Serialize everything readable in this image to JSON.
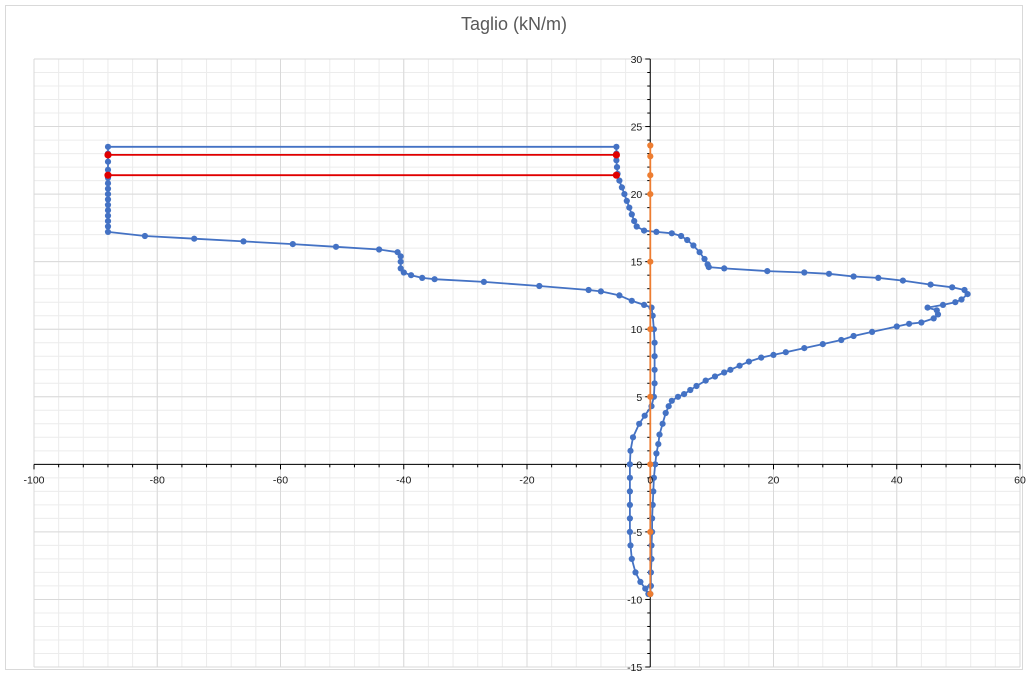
{
  "chart_data": {
    "type": "scatter",
    "title": "Taglio (kN/m)",
    "xlim": [
      -100,
      60
    ],
    "ylim": [
      -15,
      30
    ],
    "x_ticks": [
      -100,
      -80,
      -60,
      -40,
      -20,
      0,
      20,
      40,
      60
    ],
    "y_ticks": [
      -15,
      -10,
      -5,
      0,
      5,
      10,
      15,
      20,
      25,
      30
    ],
    "x_tick_labels": [
      "-100",
      "-80",
      "-60",
      "-40",
      "-20",
      "0",
      "20",
      "40",
      "60"
    ],
    "y_tick_labels": [
      "-15",
      "-10",
      "-5",
      "0",
      "5",
      "10",
      "15",
      "20",
      "25",
      "30"
    ],
    "grid": true,
    "minor_grid": true,
    "legend": "none",
    "colors": {
      "blue": "#4472c4",
      "red": "#e00000",
      "orange": "#ed7d31",
      "grid_major": "#d9d9d9",
      "grid_minor": "#ececec"
    },
    "series": [
      {
        "color": "#4472c4",
        "points": [
          [
            -0.3,
            -9.6
          ],
          [
            -0.8,
            -9.2
          ],
          [
            -1.6,
            -8.7
          ],
          [
            -2.4,
            -8.0
          ],
          [
            -3.0,
            -7.0
          ],
          [
            -3.2,
            -6.0
          ],
          [
            -3.3,
            -5.0
          ],
          [
            -3.3,
            -4.0
          ],
          [
            -3.3,
            -3.0
          ],
          [
            -3.3,
            -2.0
          ],
          [
            -3.3,
            -1.0
          ],
          [
            -3.3,
            0.0
          ],
          [
            -3.2,
            1.0
          ],
          [
            -2.8,
            2.0
          ],
          [
            -1.8,
            3.0
          ],
          [
            -0.9,
            3.6
          ],
          [
            0.2,
            4.3
          ],
          [
            0.6,
            5.0
          ],
          [
            0.7,
            6.0
          ],
          [
            0.7,
            7.0
          ],
          [
            0.7,
            8.0
          ],
          [
            0.7,
            9.0
          ],
          [
            0.6,
            10.0
          ],
          [
            0.4,
            11.0
          ],
          [
            0.2,
            11.6
          ],
          [
            -1.0,
            11.8
          ],
          [
            -3.0,
            12.1
          ],
          [
            -5.0,
            12.5
          ],
          [
            -8.0,
            12.8
          ],
          [
            -10.0,
            12.9
          ],
          [
            -18.0,
            13.2
          ],
          [
            -27.0,
            13.5
          ],
          [
            -35.0,
            13.7
          ],
          [
            -37.0,
            13.8
          ],
          [
            -38.8,
            14.0
          ],
          [
            -40.0,
            14.2
          ],
          [
            -40.5,
            14.5
          ],
          [
            -40.5,
            15.0
          ],
          [
            -40.5,
            15.4
          ],
          [
            -41.0,
            15.7
          ],
          [
            -44.0,
            15.9
          ],
          [
            -51.0,
            16.1
          ],
          [
            -58.0,
            16.3
          ],
          [
            -66.0,
            16.5
          ],
          [
            -74.0,
            16.7
          ],
          [
            -82.0,
            16.9
          ],
          [
            -88.0,
            17.2
          ],
          [
            -88.0,
            17.6
          ],
          [
            -88.0,
            18.0
          ],
          [
            -88.0,
            18.4
          ],
          [
            -88.0,
            18.8
          ],
          [
            -88.0,
            19.2
          ],
          [
            -88.0,
            19.6
          ],
          [
            -88.0,
            20.0
          ],
          [
            -88.0,
            20.4
          ],
          [
            -88.0,
            20.8
          ],
          [
            -88.0,
            21.2
          ],
          [
            -88.0,
            21.8
          ],
          [
            -88.0,
            22.4
          ],
          [
            -88.0,
            23.0
          ],
          [
            -88.0,
            23.5
          ],
          [
            -5.5,
            23.5
          ],
          [
            -5.5,
            23.0
          ],
          [
            -5.5,
            22.5
          ],
          [
            -5.4,
            22.0
          ],
          [
            -5.3,
            21.5
          ],
          [
            -5.0,
            21.0
          ],
          [
            -4.6,
            20.5
          ],
          [
            -4.2,
            20.0
          ],
          [
            -3.8,
            19.5
          ],
          [
            -3.4,
            19.0
          ],
          [
            -3.0,
            18.5
          ],
          [
            -2.6,
            18.0
          ],
          [
            -2.2,
            17.6
          ],
          [
            -1.0,
            17.3
          ],
          [
            1.0,
            17.2
          ],
          [
            3.5,
            17.1
          ],
          [
            5.0,
            16.9
          ],
          [
            6.0,
            16.6
          ],
          [
            7.0,
            16.2
          ],
          [
            8.0,
            15.7
          ],
          [
            8.8,
            15.2
          ],
          [
            9.3,
            14.8
          ],
          [
            9.5,
            14.6
          ],
          [
            12.0,
            14.5
          ],
          [
            19.0,
            14.3
          ],
          [
            25.0,
            14.2
          ],
          [
            29.0,
            14.1
          ],
          [
            33.0,
            13.9
          ],
          [
            37.0,
            13.8
          ],
          [
            41.0,
            13.6
          ],
          [
            45.5,
            13.3
          ],
          [
            49.0,
            13.1
          ],
          [
            51.0,
            12.9
          ],
          [
            51.5,
            12.6
          ],
          [
            50.5,
            12.2
          ],
          [
            49.5,
            12.0
          ],
          [
            47.5,
            11.8
          ],
          [
            45.0,
            11.6
          ],
          [
            46.5,
            11.4
          ],
          [
            46.7,
            11.1
          ],
          [
            46.0,
            10.8
          ],
          [
            44.0,
            10.5
          ],
          [
            42.0,
            10.4
          ],
          [
            40.0,
            10.2
          ],
          [
            36.0,
            9.8
          ],
          [
            33.0,
            9.5
          ],
          [
            31.0,
            9.2
          ],
          [
            28.0,
            8.9
          ],
          [
            25.0,
            8.6
          ],
          [
            22.0,
            8.3
          ],
          [
            20.0,
            8.1
          ],
          [
            18.0,
            7.9
          ],
          [
            16.0,
            7.6
          ],
          [
            14.5,
            7.3
          ],
          [
            13.0,
            7.0
          ],
          [
            12.0,
            6.8
          ],
          [
            10.5,
            6.5
          ],
          [
            9.0,
            6.2
          ],
          [
            7.5,
            5.8
          ],
          [
            6.5,
            5.5
          ],
          [
            5.5,
            5.2
          ],
          [
            4.5,
            5.0
          ],
          [
            3.5,
            4.7
          ],
          [
            3.0,
            4.3
          ],
          [
            2.5,
            3.8
          ],
          [
            2.0,
            3.0
          ],
          [
            1.5,
            2.2
          ],
          [
            1.3,
            1.5
          ],
          [
            1.0,
            0.8
          ],
          [
            0.8,
            0.0
          ],
          [
            0.6,
            -1.0
          ],
          [
            0.5,
            -2.0
          ],
          [
            0.4,
            -3.0
          ],
          [
            0.3,
            -4.0
          ],
          [
            0.3,
            -5.0
          ],
          [
            0.2,
            -6.0
          ],
          [
            0.2,
            -7.0
          ],
          [
            0.1,
            -8.0
          ],
          [
            0.1,
            -9.0
          ],
          [
            0.0,
            -9.6
          ]
        ]
      },
      {
        "color": "#e00000",
        "points": [
          [
            -88.0,
            22.9
          ],
          [
            -5.5,
            22.9
          ]
        ]
      },
      {
        "color": "#e00000",
        "points": [
          [
            -88.0,
            21.4
          ],
          [
            -5.5,
            21.4
          ]
        ]
      },
      {
        "color": "#ed7d31",
        "points": [
          [
            0.0,
            23.6
          ],
          [
            0.0,
            22.8
          ],
          [
            0.0,
            21.4
          ],
          [
            0.0,
            20.0
          ],
          [
            0.0,
            15.0
          ],
          [
            0.0,
            10.0
          ],
          [
            0.0,
            5.0
          ],
          [
            0.0,
            0.0
          ],
          [
            0.0,
            -5.0
          ],
          [
            0.0,
            -9.6
          ]
        ]
      }
    ]
  }
}
